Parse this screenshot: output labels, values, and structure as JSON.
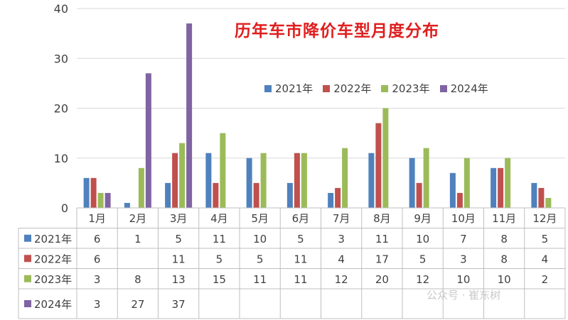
{
  "chart_data": {
    "type": "bar",
    "title": "历年车市降价车型月度分布",
    "categories": [
      "1月",
      "2月",
      "3月",
      "4月",
      "5月",
      "6月",
      "7月",
      "8月",
      "9月",
      "10月",
      "11月",
      "12月"
    ],
    "ylim": [
      0,
      40
    ],
    "yticks": [
      0,
      10,
      20,
      30,
      40
    ],
    "grid": true,
    "legend_position": "top-right",
    "series": [
      {
        "name": "2021年",
        "color": "#4f81bd",
        "values": [
          6,
          1,
          5,
          11,
          10,
          5,
          3,
          11,
          10,
          7,
          8,
          5
        ]
      },
      {
        "name": "2022年",
        "color": "#c0504d",
        "values": [
          6,
          null,
          11,
          5,
          5,
          11,
          4,
          17,
          5,
          3,
          8,
          4
        ]
      },
      {
        "name": "2023年",
        "color": "#9bbb59",
        "values": [
          3,
          8,
          13,
          15,
          11,
          11,
          12,
          20,
          12,
          10,
          10,
          2
        ]
      },
      {
        "name": "2024年",
        "color": "#8064a2",
        "values": [
          3,
          27,
          37,
          null,
          null,
          null,
          null,
          null,
          null,
          null,
          null,
          null
        ]
      }
    ]
  },
  "watermark": "公众号 · 崔东树"
}
